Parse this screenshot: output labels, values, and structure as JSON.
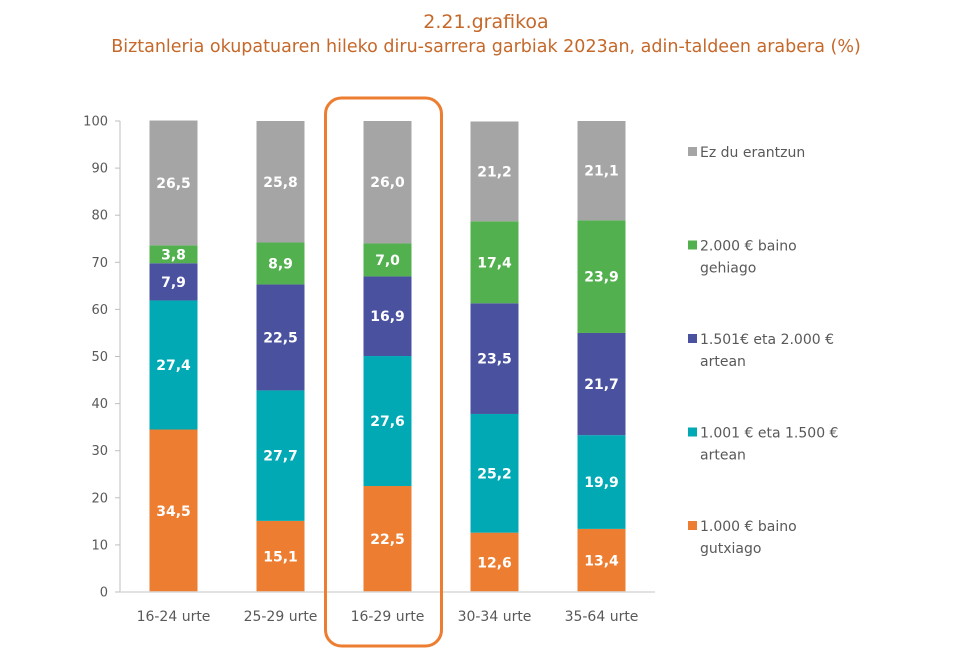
{
  "chart_data": {
    "type": "bar",
    "stacked": true,
    "title": "2.21.grafikoa",
    "subtitle": "Biztanleria okupatuaren hileko diru-sarrera garbiak 2023an, adin-taldeen arabera (%)",
    "xlabel": "",
    "ylabel": "",
    "ylim": [
      0,
      100
    ],
    "yticks": [
      0,
      10,
      20,
      30,
      40,
      50,
      60,
      70,
      80,
      90,
      100
    ],
    "grid": false,
    "legend_position": "right",
    "categories": [
      "16-24 urte",
      "25-29 urte",
      "16-29 urte",
      "30-34 urte",
      "35-64 urte"
    ],
    "highlighted_category": "16-29 urte",
    "highlight_color": "#ed7d31",
    "series": [
      {
        "name": "1.000 € baino gutxiago",
        "legend_lines": [
          "1.000 € baino",
          "gutxiago"
        ],
        "color": "#ed7d31",
        "values": [
          34.5,
          15.1,
          22.5,
          12.6,
          13.4
        ],
        "labels": [
          "34,5",
          "15,1",
          "22,5",
          "12,6",
          "13,4"
        ]
      },
      {
        "name": "1.001 € eta 1.500 € artean",
        "legend_lines": [
          " 1.001 € eta 1.500 €",
          "artean"
        ],
        "color": "#00a9b4",
        "values": [
          27.4,
          27.7,
          27.6,
          25.2,
          19.9
        ],
        "labels": [
          "27,4",
          "27,7",
          "27,6",
          "25,2",
          "19,9"
        ]
      },
      {
        "name": "1.501€ eta 2.000 € artean",
        "legend_lines": [
          " 1.501€ eta 2.000 €",
          "artean"
        ],
        "color": "#4a52a0",
        "values": [
          7.9,
          22.5,
          16.9,
          23.5,
          21.7
        ],
        "labels": [
          "7,9",
          "22,5",
          "16,9",
          "23,5",
          "21,7"
        ]
      },
      {
        "name": "2.000 € baino gehiago",
        "legend_lines": [
          "2.000 € baino",
          "gehiago"
        ],
        "color": "#52b04e",
        "values": [
          3.8,
          8.9,
          7.0,
          17.4,
          23.9
        ],
        "labels": [
          "3,8",
          "8,9",
          "7,0",
          "17,4",
          "23,9"
        ]
      },
      {
        "name": "Ez du erantzun",
        "legend_lines": [
          "Ez du erantzun"
        ],
        "color": "#a5a5a5",
        "values": [
          26.5,
          25.8,
          26.0,
          21.2,
          21.1
        ],
        "labels": [
          "26,5",
          "25,8",
          "26,0",
          "21,2",
          "21,1"
        ]
      }
    ]
  }
}
